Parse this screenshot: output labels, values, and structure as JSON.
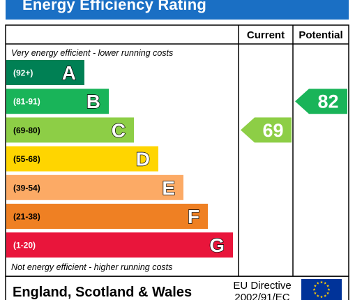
{
  "title": "Energy Efficiency Rating",
  "columns": {
    "current": "Current",
    "potential": "Potential"
  },
  "top_note": "Very energy efficient - lower running costs",
  "bottom_note": "Not energy efficient - higher running costs",
  "footer": {
    "region": "England, Scotland & Wales",
    "directive_line1": "EU Directive",
    "directive_line2": "2002/91/EC"
  },
  "chart_data": {
    "type": "bar",
    "categories": [
      "A",
      "B",
      "C",
      "D",
      "E",
      "F",
      "G"
    ],
    "ranges": [
      "(92+)",
      "(81-91)",
      "(69-80)",
      "(55-68)",
      "(39-54)",
      "(21-38)",
      "(1-20)"
    ],
    "colors": [
      "#008054",
      "#19b459",
      "#8dce46",
      "#ffd500",
      "#fcaa65",
      "#ef8023",
      "#e9153b"
    ],
    "current": {
      "value": 69,
      "band": "C",
      "color": "#8dce46"
    },
    "potential": {
      "value": 82,
      "band": "B",
      "color": "#19b459"
    }
  },
  "colors": {
    "title_bar": "#1a6fc4",
    "flag": "#003399",
    "stars": "#ffcc00"
  }
}
